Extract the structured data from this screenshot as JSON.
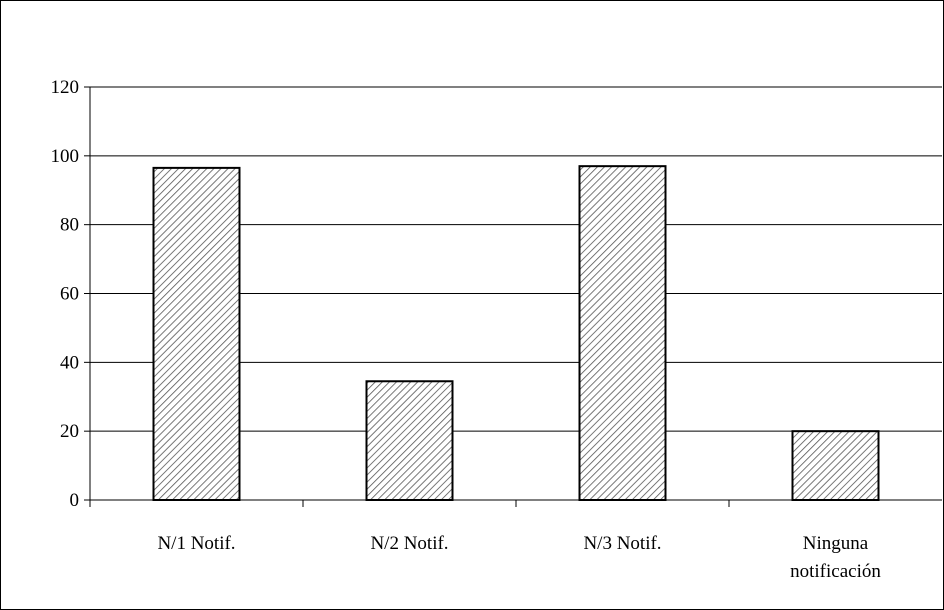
{
  "chart_data": {
    "type": "bar",
    "title": "",
    "xlabel": "",
    "ylabel": "",
    "categories": [
      [
        "N/1 Notif."
      ],
      [
        "N/2 Notif."
      ],
      [
        "N/3 Notif."
      ],
      [
        "Ninguna",
        "notificación"
      ]
    ],
    "values": [
      96.5,
      34.5,
      97,
      20
    ],
    "ylim": [
      0,
      120
    ],
    "yticks": [
      0,
      20,
      40,
      60,
      80,
      100,
      120
    ],
    "grid": true,
    "legend": "none",
    "bar_fill": "hatched",
    "colors": {
      "bar_stroke": "#000000",
      "hatch": "#555555",
      "grid": "#000000",
      "background": "#ffffff"
    }
  }
}
